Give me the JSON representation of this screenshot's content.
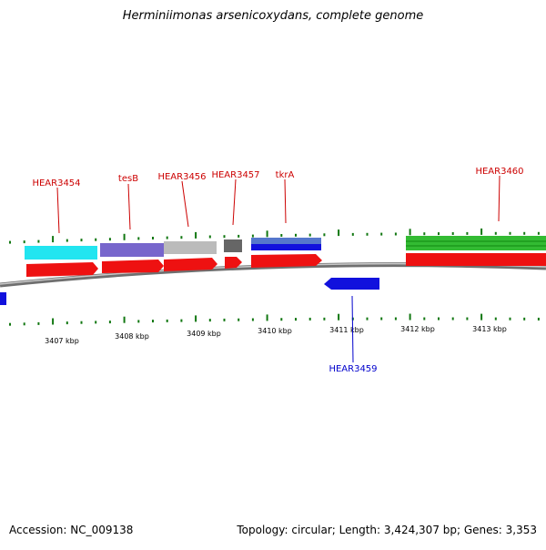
{
  "title": "Herminiimonas arsenicoxydans, complete genome",
  "footer": {
    "accession": "Accession: NC_009138",
    "topology": "Topology: circular; Length: 3,424,307 bp; Genes: 3,353"
  },
  "colors": {
    "gene_red": "#ee1111",
    "gene_blue": "#1111dd",
    "label_red": "#cc0000",
    "label_blue": "#0000cc",
    "tick_green": "#117711",
    "backbone": "#777777"
  },
  "kbp_labels": [
    "3407 kbp",
    "3408 kbp",
    "3409 kbp",
    "3410 kbp",
    "3411 kbp",
    "3412 kbp",
    "3413 kbp"
  ],
  "gene_labels": [
    {
      "id": "HEAR3454",
      "text": "HEAR3454",
      "strand": "+"
    },
    {
      "id": "tesB",
      "text": "tesB",
      "strand": "+"
    },
    {
      "id": "HEAR3456",
      "text": "HEAR3456",
      "strand": "+"
    },
    {
      "id": "HEAR3457",
      "text": "HEAR3457",
      "strand": "+"
    },
    {
      "id": "tkrA",
      "text": "tkrA",
      "strand": "+"
    },
    {
      "id": "HEAR3460",
      "text": "HEAR3460",
      "strand": "+"
    },
    {
      "id": "HEAR3459",
      "text": "HEAR3459",
      "strand": "-"
    }
  ]
}
